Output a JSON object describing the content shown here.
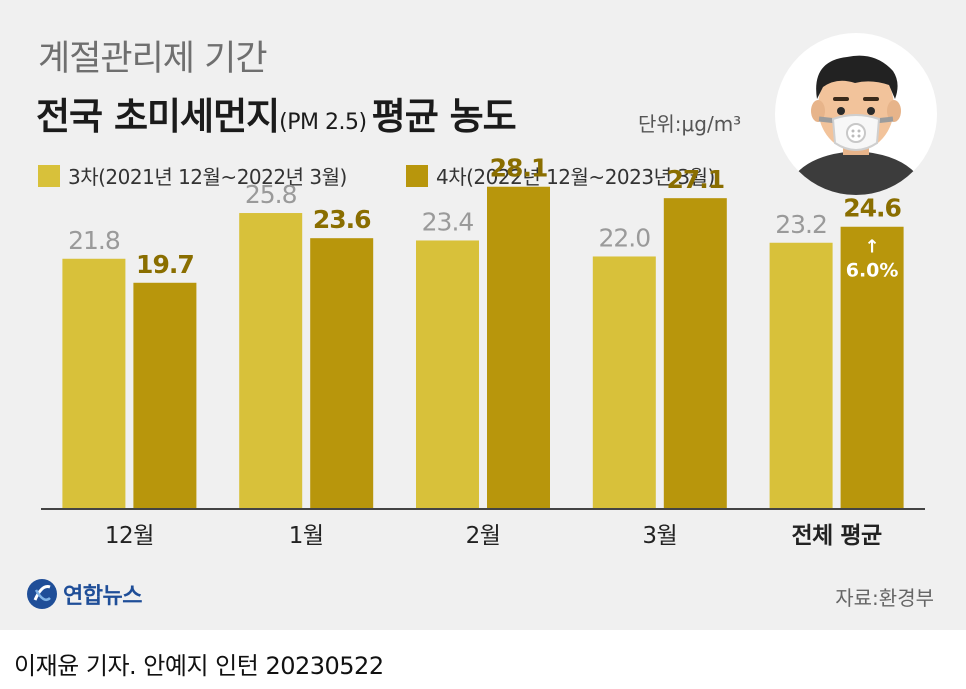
{
  "header": {
    "subtitle": "계절관리제 기간",
    "title_main": "전국 초미세먼지",
    "title_pm": "(PM 2.5)",
    "title_end": "평균 농도",
    "unit": "단위:μg/m³"
  },
  "legend": [
    {
      "label": "3차(2021년 12월~2022년 3월)",
      "color": "#d8c13a"
    },
    {
      "label": "4차(2022년 12월~2023년 3월)",
      "color": "#b8960c"
    }
  ],
  "chart_data": {
    "type": "bar",
    "categories": [
      "12월",
      "1월",
      "2월",
      "3월",
      "전체 평균"
    ],
    "series": [
      {
        "name": "3차(2021년 12월~2022년 3월)",
        "values": [
          21.8,
          25.8,
          23.4,
          22.0,
          23.2
        ],
        "labels": [
          "21.8",
          "25.8",
          "23.4",
          "22.0",
          "23.2"
        ],
        "color": "#d8c13a",
        "label_color": "#9a9a9a"
      },
      {
        "name": "4차(2022년 12월~2023년 3월)",
        "values": [
          19.7,
          23.6,
          28.1,
          27.1,
          24.6
        ],
        "labels": [
          "19.7",
          "23.6",
          "28.1",
          "27.1",
          "24.6"
        ],
        "color": "#b8960c",
        "label_color": "#8a6e00"
      }
    ],
    "annotation": {
      "category": "전체 평균",
      "series": 1,
      "text": "6.0%",
      "arrow": "↑"
    },
    "bold_category": "전체 평균",
    "ylim": [
      0,
      30
    ],
    "grid": false
  },
  "footer": {
    "logo_text": "연합뉴스",
    "source": "자료:환경부",
    "credit": "이재윤 기자. 안예지 인턴  20230522"
  }
}
